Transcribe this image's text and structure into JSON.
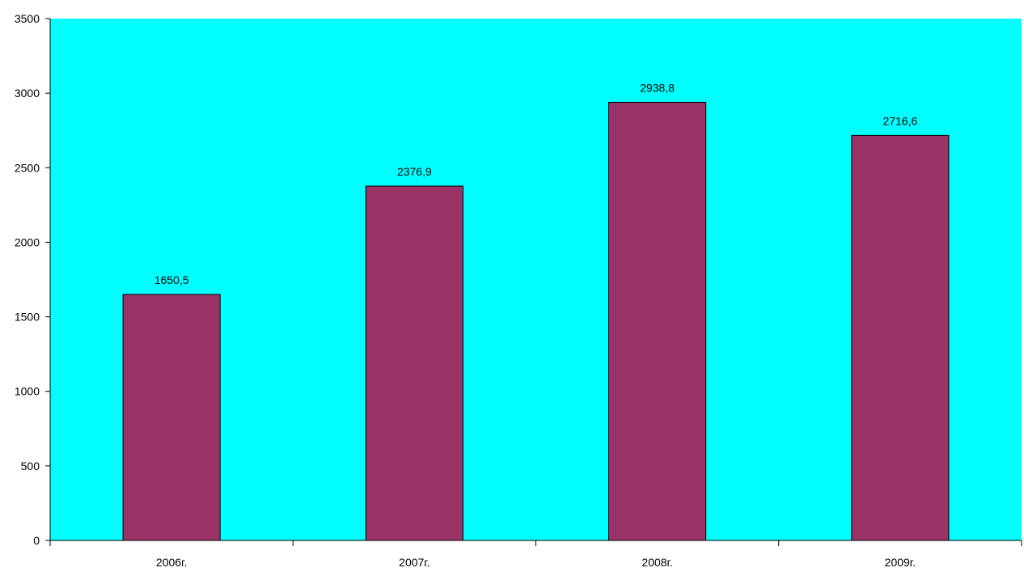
{
  "chart_data": {
    "type": "bar",
    "title": "",
    "xlabel": "",
    "ylabel": "",
    "categories": [
      "2006г.",
      "2007г.",
      "2008г.",
      "2009г."
    ],
    "values": [
      1650.5,
      2376.9,
      2938.8,
      2716.6
    ],
    "data_labels": [
      "1650,5",
      "2376,9",
      "2938,8",
      "2716,6"
    ],
    "ylim": [
      0,
      3500
    ],
    "yticks": [
      0,
      500,
      1000,
      1500,
      2000,
      2500,
      3000,
      3500
    ],
    "ytick_labels": [
      "0",
      "500",
      "1000",
      "1500",
      "2000",
      "2500",
      "3000",
      "3500"
    ],
    "grid": false,
    "legend": "none",
    "colors": {
      "plot_background": "#00ffff",
      "bar_fill": "#993366",
      "bar_stroke": "#000000",
      "axis": "#000000"
    }
  }
}
